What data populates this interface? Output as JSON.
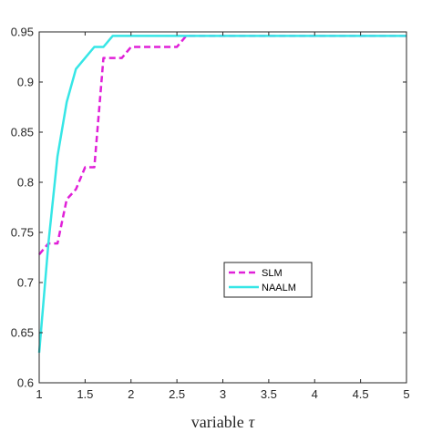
{
  "chart_data": {
    "type": "line",
    "xlabel": "variable",
    "xlabel_symbol": "τ",
    "ylabel": "",
    "xlim": [
      1,
      5
    ],
    "ylim": [
      0.6,
      0.95
    ],
    "x_ticks": [
      "1",
      "1.5",
      "2",
      "2.5",
      "3",
      "3.5",
      "4",
      "4.5",
      "5"
    ],
    "y_ticks": [
      "0.6",
      "0.65",
      "0.7",
      "0.75",
      "0.8",
      "0.85",
      "0.9",
      "0.95"
    ],
    "grid": false,
    "legend_position": "lower-center-right",
    "series": [
      {
        "name": "SLM",
        "color": "#e020d8",
        "style": "dashed",
        "x": [
          1.0,
          1.1,
          1.2,
          1.3,
          1.4,
          1.5,
          1.6,
          1.7,
          1.8,
          1.9,
          2.0,
          2.1,
          2.2,
          2.3,
          2.4,
          2.5,
          2.6,
          2.7,
          2.8,
          3.0,
          3.5,
          4.0,
          4.5,
          5.0
        ],
        "values": [
          0.728,
          0.739,
          0.739,
          0.783,
          0.793,
          0.815,
          0.815,
          0.924,
          0.924,
          0.924,
          0.935,
          0.935,
          0.935,
          0.935,
          0.935,
          0.935,
          0.946,
          0.946,
          0.946,
          0.946,
          0.946,
          0.946,
          0.946,
          0.946
        ]
      },
      {
        "name": "NAALM",
        "color": "#36e6e6",
        "style": "solid",
        "x": [
          1.0,
          1.1,
          1.2,
          1.3,
          1.4,
          1.5,
          1.6,
          1.7,
          1.8,
          1.9,
          2.0,
          2.5,
          3.0,
          3.5,
          4.0,
          4.5,
          5.0
        ],
        "values": [
          0.63,
          0.739,
          0.826,
          0.88,
          0.913,
          0.924,
          0.935,
          0.935,
          0.946,
          0.946,
          0.946,
          0.946,
          0.946,
          0.946,
          0.946,
          0.946,
          0.946
        ]
      }
    ]
  }
}
